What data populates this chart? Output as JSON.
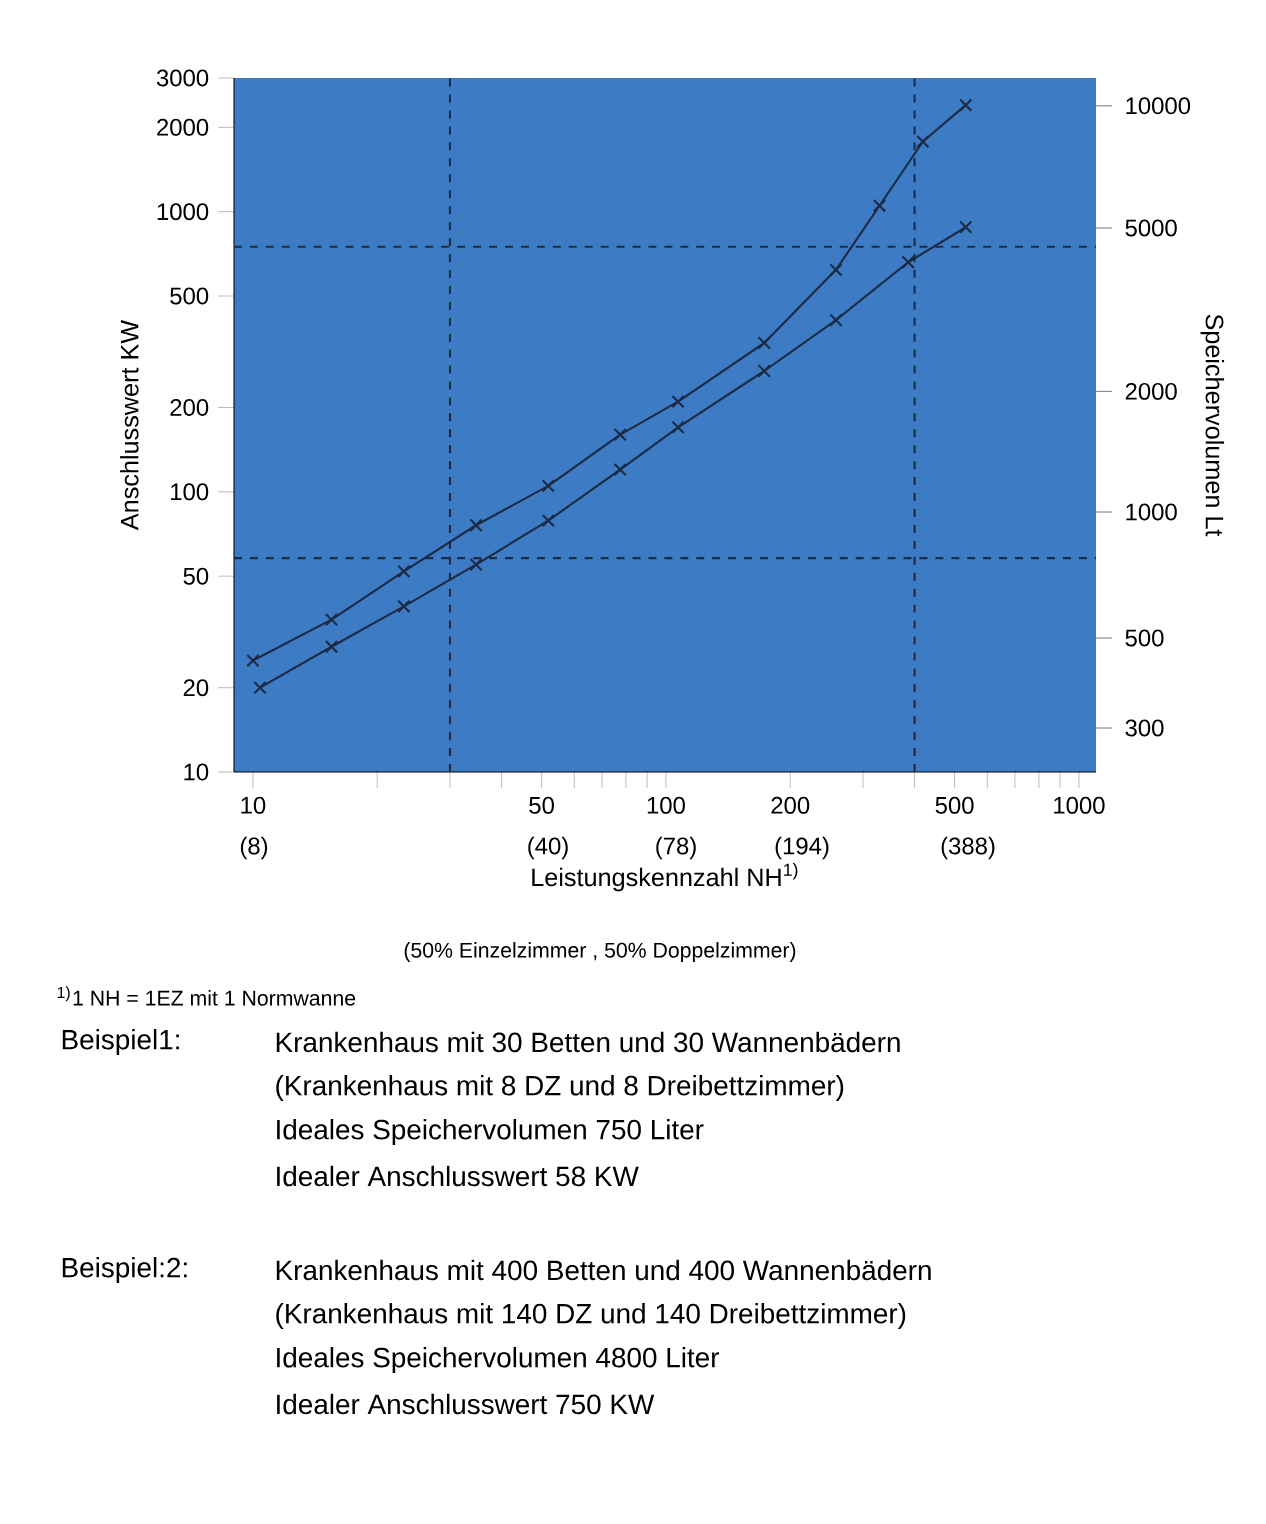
{
  "chart_data": {
    "type": "line",
    "xlabel": "Leistungskennzahl NH$^{1)}$",
    "ylabel": "Anschlusswert KW",
    "y2label": "Speichervolumen Lt",
    "log": "xy",
    "marker": "cross",
    "line_style": "solid",
    "x": [
      10.4,
      15.5,
      23.2,
      34.7,
      51.9,
      77.5,
      107,
      173,
      258,
      386,
      532
    ],
    "series": [
      {
        "color": "#1c2b45",
        "values": [
          20,
          28,
          39,
          55,
          79,
          120,
          170,
          270,
          410,
          660,
          880
        ]
      },
      {
        "color": "#1c2b45",
        "x": [
          10,
          15.5,
          23.2,
          34.7,
          51.9,
          77.5,
          107,
          173,
          258,
          329,
          419,
          532
        ],
        "values": [
          25,
          35,
          52,
          76,
          105,
          160,
          210,
          340,
          620,
          1050,
          1780,
          2400
        ]
      }
    ],
    "xlim": [
      9,
      1100
    ],
    "ylim": [
      10,
      3000
    ],
    "xticks": [
      10,
      {
        "value": 20,
        "label": null
      },
      {
        "value": 30,
        "label": null
      },
      {
        "value": 40,
        "label": null
      },
      50,
      {
        "value": 60,
        "label": null
      },
      {
        "value": 70,
        "label": null
      },
      {
        "value": 80,
        "label": null
      },
      {
        "value": 90,
        "label": null
      },
      100,
      200,
      {
        "value": 300,
        "label": null
      },
      {
        "value": 400,
        "label": null
      },
      500,
      {
        "value": 600,
        "label": null
      },
      {
        "value": 700,
        "label": null
      },
      {
        "value": 800,
        "label": null
      },
      {
        "value": 900,
        "label": null
      },
      1000
    ],
    "yticks": [
      10,
      20,
      50,
      100,
      200,
      500,
      1000,
      2000,
      3000
    ],
    "ref_lines": [
      {
        "axis": "x",
        "value": 30,
        "line_style": "dashed"
      },
      {
        "axis": "x",
        "value": 400,
        "line_style": "dashed"
      },
      {
        "axis": "y",
        "value": 58,
        "line_style": "dashed"
      },
      {
        "axis": "y",
        "value": 750,
        "line_style": "dashed"
      }
    ],
    "annotations": [
      "300",
      "500",
      "1000",
      "2000",
      "5000",
      "10000",
      "(8)",
      "(40)",
      "(78)",
      "(194)",
      "(388)",
      "(50% Einzelzimmer , 50% Doppelzimmer)",
      "$^{1)}$1 NH = 1EZ mit 1 Normwanne",
      "Beispiel1:",
      "Krankenhaus mit 30 Betten und 30 Wannenbädern",
      "(Krankenhaus mit 8 DZ und 8 Dreibettzimmer)",
      "Ideales Speichervolumen 750 Liter",
      "Idealer Anschlusswert 58 KW",
      "Beispiel:2:",
      "Krankenhaus mit 400 Betten und 400 Wannenbädern",
      "(Krankenhaus mit 140 DZ und 140 Dreibettzimmer)",
      "Ideales Speichervolumen 4800 Liter",
      "Idealer Anschlusswert 750 KW"
    ]
  }
}
